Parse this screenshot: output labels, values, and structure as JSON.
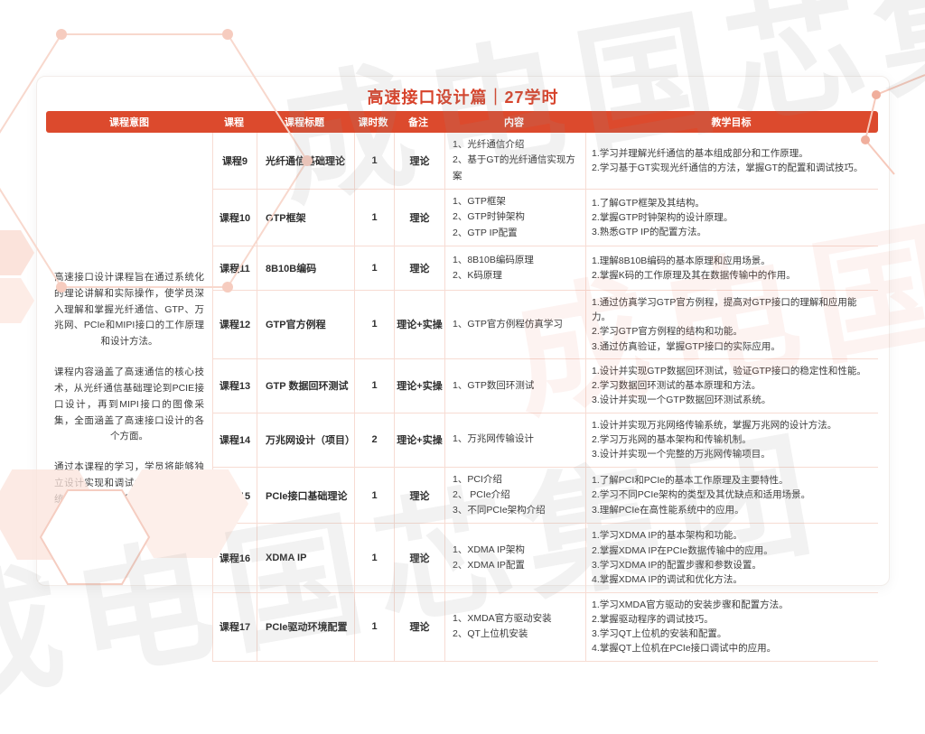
{
  "title": "高速接口设计篇｜27学时",
  "watermark": "成电国芯集团",
  "colors": {
    "accent": "#DC4A2D",
    "title_red": "#D7432B",
    "grid_line": "#F7DCD3",
    "body_text": "#3B3B3B"
  },
  "table": {
    "headers": [
      "课程意图",
      "课程",
      "课程标题",
      "课时数",
      "备注",
      "内容",
      "教学目标"
    ],
    "intent_paragraphs": [
      "高速接口设计课程旨在通过系统化的理论讲解和实际操作，使学员深入理解和掌握光纤通信、GTP、万兆网、PCIe和MIPI接口的工作原理和设计方法。",
      "课程内容涵盖了高速通信的核心技术，从光纤通信基础理论到PCIE接口设计，再到MIPI接口的图像采集，全面涵盖了高速接口设计的各个方面。",
      "通过本课程的学习，学员将能够独立设计实现和调试各种高速接口系统，为从事高性能通信和系统性开发奠定坚实的基础。"
    ],
    "rows": [
      {
        "course": "课程9",
        "title": "光纤通信基础理论",
        "hours": "1",
        "note": "理论",
        "content": [
          "1、光纤通信介绍",
          "2、基于GT的光纤通信实现方案"
        ],
        "objectives": [
          "1.学习并理解光纤通信的基本组成部分和工作原理。",
          "2.学习基于GT实现光纤通信的方法，掌握GT的配置和调试技巧。"
        ]
      },
      {
        "course": "课程10",
        "title": "GTP框架",
        "hours": "1",
        "note": "理论",
        "content": [
          "1、GTP框架",
          "2、GTP时钟架构",
          "2、GTP IP配置"
        ],
        "objectives": [
          "1.了解GTP框架及其结构。",
          "2.掌握GTP时钟架构的设计原理。",
          "3.熟悉GTP IP的配置方法。"
        ]
      },
      {
        "course": "课程11",
        "title": "8B10B编码",
        "hours": "1",
        "note": "理论",
        "content": [
          "1、8B10B编码原理",
          "2、K码原理"
        ],
        "objectives": [
          "1.理解8B10B编码的基本原理和应用场景。",
          "2.掌握K码的工作原理及其在数据传输中的作用。"
        ]
      },
      {
        "course": "课程12",
        "title": "GTP官方例程",
        "hours": "1",
        "note": "理论+实操",
        "content": [
          "1、GTP官方例程仿真学习"
        ],
        "objectives": [
          "1.通过仿真学习GTP官方例程，提高对GTP接口的理解和应用能力。",
          "2.学习GTP官方例程的结构和功能。",
          "3.通过仿真验证，掌握GTP接口的实际应用。"
        ]
      },
      {
        "course": "课程13",
        "title": "GTP 数据回环测试",
        "hours": "1",
        "note": "理论+实操",
        "content": [
          "1、GTP数回环测试"
        ],
        "objectives": [
          "1.设计并实现GTP数据回环测试，验证GTP接口的稳定性和性能。",
          "2.学习数据回环测试的基本原理和方法。",
          "3.设计并实现一个GTP数据回环测试系统。"
        ]
      },
      {
        "course": "课程14",
        "title": "万兆网设计（项目）",
        "hours": "2",
        "note": "理论+实操",
        "content": [
          "1、万兆网传输设计"
        ],
        "objectives": [
          "1.设计并实现万兆网络传输系统，掌握万兆网的设计方法。",
          "2.学习万兆网的基本架构和传输机制。",
          "3.设计并实现一个完整的万兆网传输项目。"
        ]
      },
      {
        "course": "课程15",
        "title": "PCIe接口基础理论",
        "hours": "1",
        "note": "理论",
        "content": [
          "1、PCI介绍",
          "2、 PCIe介绍",
          "3、不同PCIe架构介绍"
        ],
        "objectives": [
          "1.了解PCI和PCIe的基本工作原理及主要特性。",
          "2.学习不同PCIe架构的类型及其优缺点和适用场景。",
          "3.理解PCIe在高性能系统中的应用。"
        ]
      },
      {
        "course": "课程16",
        "title": "XDMA IP",
        "hours": "1",
        "note": "理论",
        "content": [
          "1、XDMA IP架构",
          "2、XDMA IP配置"
        ],
        "objectives": [
          "1.学习XDMA IP的基本架构和功能。",
          "2.掌握XDMA IP在PCIe数据传输中的应用。",
          "3.学习XDMA IP的配置步骤和参数设置。",
          "4.掌握XDMA IP的调试和优化方法。"
        ]
      },
      {
        "course": "课程17",
        "title": "PCIe驱动环境配置",
        "hours": "1",
        "note": "理论",
        "content": [
          "1、XMDA官方驱动安装",
          "2、QT上位机安装"
        ],
        "objectives": [
          "1.学习XMDA官方驱动的安装步骤和配置方法。",
          "2.掌握驱动程序的调试技巧。",
          "3.学习QT上位机的安装和配置。",
          "4.掌握QT上位机在PCIe接口调试中的应用。"
        ]
      }
    ]
  }
}
